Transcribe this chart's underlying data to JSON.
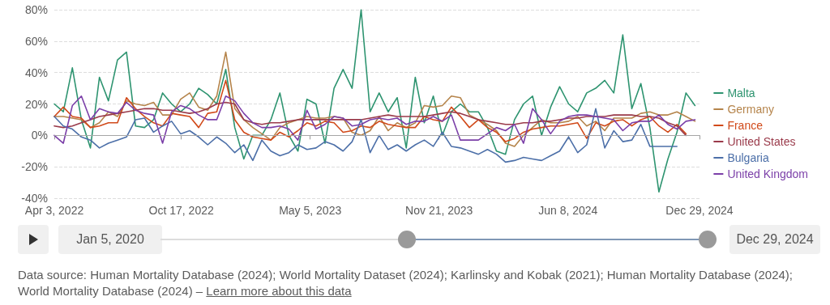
{
  "chart_data": {
    "type": "line",
    "x": [
      "2022-04-03",
      "2022-04-17",
      "2022-05-01",
      "2022-05-15",
      "2022-05-29",
      "2022-06-12",
      "2022-06-26",
      "2022-07-10",
      "2022-07-24",
      "2022-08-07",
      "2022-08-21",
      "2022-09-04",
      "2022-09-18",
      "2022-10-02",
      "2022-10-16",
      "2022-10-30",
      "2022-11-13",
      "2022-11-27",
      "2022-12-11",
      "2022-12-25",
      "2023-01-08",
      "2023-01-22",
      "2023-02-05",
      "2023-02-19",
      "2023-03-05",
      "2023-03-19",
      "2023-04-02",
      "2023-04-16",
      "2023-04-30",
      "2023-05-14",
      "2023-05-28",
      "2023-06-11",
      "2023-06-25",
      "2023-07-09",
      "2023-07-23",
      "2023-08-06",
      "2023-08-20",
      "2023-09-03",
      "2023-09-17",
      "2023-10-01",
      "2023-10-15",
      "2023-10-29",
      "2023-11-12",
      "2023-11-26",
      "2023-12-10",
      "2023-12-24",
      "2024-01-07",
      "2024-01-21",
      "2024-02-04",
      "2024-02-18",
      "2024-03-03",
      "2024-03-17",
      "2024-03-31",
      "2024-04-14",
      "2024-04-28",
      "2024-05-12",
      "2024-05-26",
      "2024-06-09",
      "2024-06-23",
      "2024-07-07",
      "2024-07-21",
      "2024-08-04",
      "2024-08-18",
      "2024-09-01",
      "2024-09-15",
      "2024-09-29",
      "2024-10-13",
      "2024-10-27",
      "2024-11-10",
      "2024-11-24",
      "2024-12-08",
      "2024-12-22"
    ],
    "series": [
      {
        "name": "Malta",
        "color": "#2e9470",
        "values": [
          20,
          15,
          43,
          10,
          -8,
          37,
          22,
          48,
          53,
          6,
          5,
          10,
          27,
          20,
          15,
          20,
          30,
          26,
          20,
          42,
          5,
          -15,
          0,
          0,
          10,
          27,
          0,
          -10,
          23,
          20,
          -5,
          30,
          42,
          30,
          80,
          15,
          27,
          15,
          24,
          -8,
          37,
          8,
          25,
          0,
          15,
          20,
          15,
          15,
          5,
          -10,
          -12,
          10,
          20,
          25,
          0,
          18,
          31,
          20,
          15,
          27,
          30,
          35,
          27,
          64,
          17,
          33,
          5,
          -36,
          -15,
          2,
          27,
          19
        ]
      },
      {
        "name": "Germany",
        "color": "#b5844b",
        "values": [
          12,
          12,
          11,
          10,
          5,
          8,
          15,
          12,
          22,
          20,
          19,
          21,
          13,
          13,
          23,
          27,
          18,
          16,
          25,
          53,
          17,
          10,
          5,
          1,
          -3,
          5,
          8,
          10,
          12,
          11,
          11,
          12,
          11,
          2,
          0,
          3,
          12,
          3,
          8,
          5,
          8,
          19,
          18,
          19,
          25,
          24,
          13,
          10,
          7,
          3,
          -5,
          -7,
          0,
          5,
          10,
          8,
          8,
          9,
          12,
          6,
          9,
          3,
          11,
          11,
          11,
          14,
          15,
          13,
          13,
          15,
          12,
          9
        ]
      },
      {
        "name": "France",
        "color": "#d14a1a",
        "values": [
          12,
          18,
          12,
          11,
          5,
          6,
          8,
          8,
          24,
          17,
          12,
          8,
          6,
          14,
          13,
          12,
          5,
          14,
          15,
          35,
          10,
          2,
          -1,
          -2,
          -3,
          2,
          -1,
          3,
          8,
          6,
          9,
          8,
          2,
          3,
          6,
          5,
          9,
          7,
          6,
          5,
          5,
          12,
          10,
          9,
          18,
          12,
          5,
          10,
          5,
          2,
          -4,
          -2,
          2,
          4,
          5,
          6,
          6,
          7,
          8,
          -2,
          8,
          6,
          9,
          10,
          6,
          10,
          12,
          6,
          2,
          7,
          1,
          null
        ]
      },
      {
        "name": "United States",
        "color": "#9a3a4a",
        "values": [
          6,
          5,
          6,
          8,
          10,
          12,
          13,
          14,
          15,
          16,
          17,
          17,
          16,
          16,
          15,
          14,
          15,
          17,
          20,
          21,
          20,
          10,
          8,
          7,
          8,
          8,
          9,
          10,
          10,
          10,
          10,
          10,
          10,
          10,
          10,
          11,
          12,
          13,
          12,
          12,
          12,
          12,
          13,
          14,
          15,
          14,
          12,
          10,
          9,
          8,
          7,
          7,
          8,
          8,
          9,
          9,
          10,
          11,
          11,
          12,
          12,
          12,
          13,
          13,
          13,
          12,
          12,
          11,
          8,
          6,
          0,
          null
        ]
      },
      {
        "name": "Bulgaria",
        "color": "#4c6fa8",
        "values": [
          12,
          6,
          4,
          -1,
          -3,
          -8,
          -5,
          -3,
          -1,
          10,
          11,
          2,
          6,
          9,
          1,
          3,
          -1,
          -6,
          -1,
          -5,
          -11,
          -6,
          -16,
          -3,
          -10,
          -13,
          -11,
          -6,
          -9,
          -8,
          -4,
          -6,
          -10,
          -4,
          10,
          -11,
          0,
          -9,
          -6,
          -10,
          -6,
          -3,
          -7,
          2,
          -7,
          -8,
          -10,
          -12,
          -9,
          -12,
          -17,
          -16,
          -14,
          -15,
          -16,
          -13,
          -10,
          -1,
          -11,
          -6,
          17,
          -8,
          3,
          -4,
          -3,
          7,
          -7,
          -7,
          -7,
          -7,
          null,
          null
        ]
      },
      {
        "name": "United Kingdom",
        "color": "#7b3fa8",
        "values": [
          0,
          -5,
          19,
          25,
          10,
          17,
          15,
          14,
          21,
          16,
          14,
          13,
          -5,
          15,
          19,
          17,
          13,
          10,
          10,
          25,
          22,
          14,
          8,
          5,
          5,
          6,
          4,
          -3,
          16,
          4,
          7,
          12,
          11,
          6,
          7,
          10,
          11,
          10,
          11,
          7,
          9,
          9,
          12,
          9,
          13,
          -3,
          -3,
          -3,
          1,
          5,
          3,
          7,
          -5,
          17,
          10,
          1,
          9,
          12,
          13,
          13,
          12,
          11,
          10,
          3,
          8,
          9,
          9,
          13,
          7,
          4,
          9,
          10
        ]
      }
    ],
    "xlim": [
      "2022-04-03",
      "2024-12-29"
    ],
    "xticks": [
      {
        "value": "2022-04-03",
        "label": "Apr 3, 2022"
      },
      {
        "value": "2022-10-17",
        "label": "Oct 17, 2022"
      },
      {
        "value": "2023-05-05",
        "label": "May 5, 2023"
      },
      {
        "value": "2023-11-21",
        "label": "Nov 21, 2023"
      },
      {
        "value": "2024-06-08",
        "label": "Jun 8, 2024"
      },
      {
        "value": "2024-12-29",
        "label": "Dec 29, 2024"
      }
    ],
    "ylim": [
      -40,
      80
    ],
    "yticks": [
      {
        "value": -40,
        "label": "-40%"
      },
      {
        "value": -20,
        "label": "-20%"
      },
      {
        "value": 0,
        "label": "0%"
      },
      {
        "value": 20,
        "label": "20%"
      },
      {
        "value": 40,
        "label": "40%"
      },
      {
        "value": 60,
        "label": "60%"
      },
      {
        "value": 80,
        "label": "80%"
      }
    ],
    "ref_lines": [
      {
        "axis": "y",
        "value": 0,
        "color": "#a6a6a6"
      }
    ],
    "grid": "y",
    "legend": "right",
    "line_style": "solid",
    "annotations": [
      "Jan 5, 2020",
      "Dec 29, 2024",
      "Data source: Human Mortality Database (2024); World Mortality Dataset (2024); Karlinsky and Kobak (2021); Human Mortality Database (2024); World Mortality Database (2024) –",
      "Learn more about this data"
    ]
  }
}
